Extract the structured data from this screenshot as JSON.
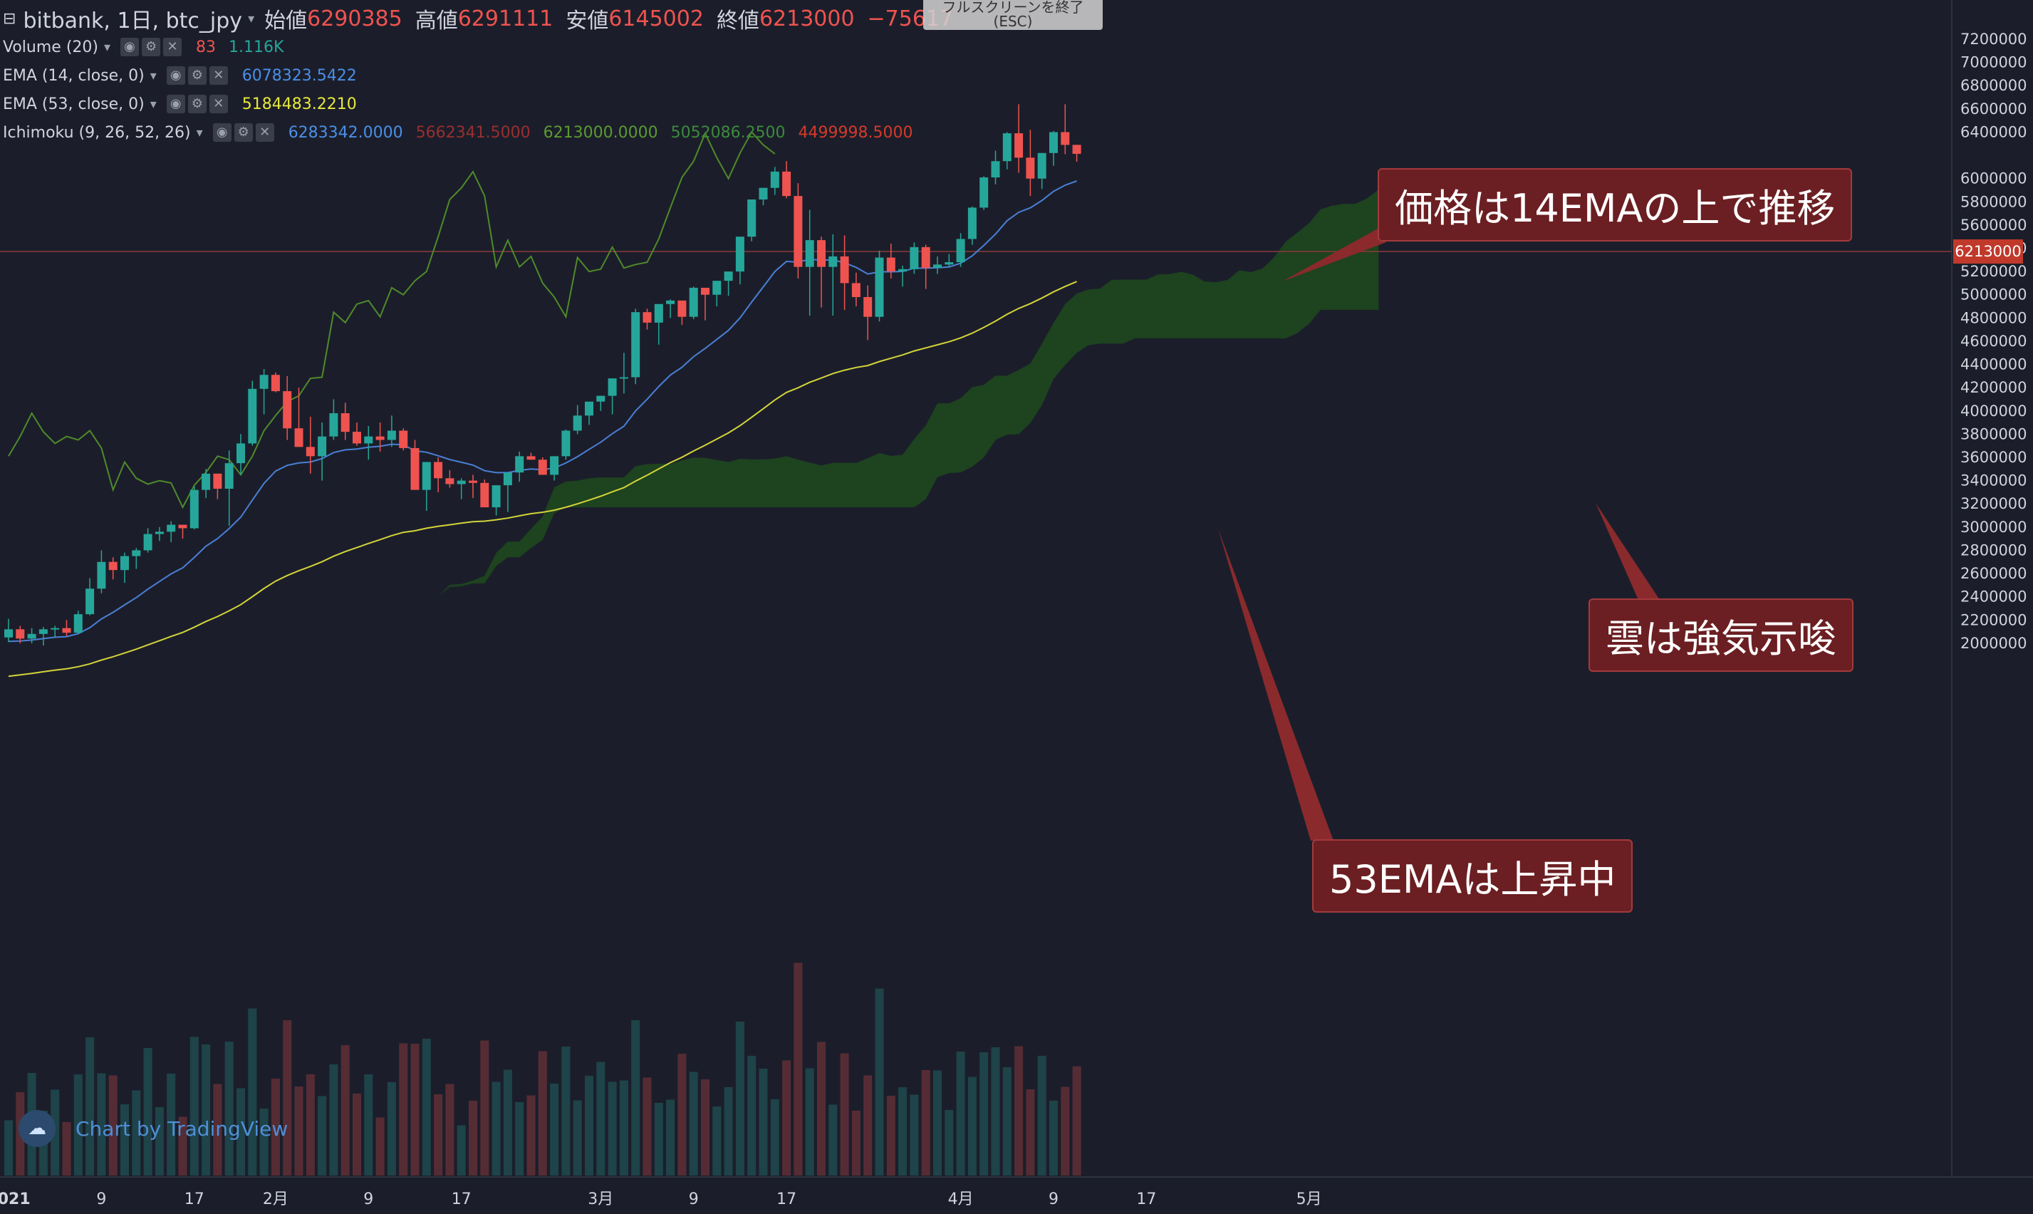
{
  "header": {
    "symbol": "bitbank, 1日, btc_jpy",
    "open_label": "始値",
    "open": "6290385",
    "high_label": "高値",
    "high": "6291111",
    "low_label": "安値",
    "low": "6145002",
    "close_label": "終値",
    "close": "6213000",
    "change": "−75617",
    "fullscreen_hint": "フルスクリーンを終了 (ESC)"
  },
  "indicators": {
    "volume": {
      "label": "Volume (20)",
      "v1": "83",
      "v2": "1.116K"
    },
    "ema14": {
      "label": "EMA (14, close, 0)",
      "value": "6078323.5422"
    },
    "ema53": {
      "label": "EMA (53, close, 0)",
      "value": "5184483.2210"
    },
    "ichimoku": {
      "label": "Ichimoku (9, 26, 52, 26)",
      "v1": "6283342.0000",
      "v2": "5662341.5000",
      "v3": "6213000.0000",
      "v4": "5052086.2500",
      "v5": "4499998.5000"
    }
  },
  "price_axis": {
    "ticks": [
      "7200000",
      "7000000",
      "6800000",
      "6600000",
      "6400000",
      "6213000",
      "6000000",
      "5800000",
      "5600000",
      "5400000",
      "5200000",
      "5000000",
      "4800000",
      "4600000",
      "4400000",
      "4200000",
      "4000000",
      "3800000",
      "3600000",
      "3400000",
      "3200000",
      "3000000",
      "2800000",
      "2600000",
      "2400000",
      "2200000",
      "2000000"
    ],
    "last_price": "6213000"
  },
  "time_axis": {
    "labels": [
      {
        "text": "2021",
        "bar": 0,
        "bold": true
      },
      {
        "text": "9",
        "bar": 8
      },
      {
        "text": "17",
        "bar": 16
      },
      {
        "text": "2月",
        "bar": 23
      },
      {
        "text": "9",
        "bar": 31
      },
      {
        "text": "17",
        "bar": 39
      },
      {
        "text": "3月",
        "bar": 51
      },
      {
        "text": "9",
        "bar": 59
      },
      {
        "text": "17",
        "bar": 67
      },
      {
        "text": "4月",
        "bar": 82
      },
      {
        "text": "9",
        "bar": 90
      },
      {
        "text": "17",
        "bar": 98
      },
      {
        "text": "5月",
        "bar": 112
      }
    ]
  },
  "annotations": {
    "note1": "価格は14EMAの上で推移",
    "note2": "雲は強気示唆",
    "note3": "53EMAは上昇中"
  },
  "branding": {
    "text": "Chart by TradingView"
  },
  "colors": {
    "bg": "#1b1e2a",
    "up": "#26a69a",
    "down": "#ef5350",
    "ema14": "#4a7fd6",
    "ema53": "#d4d43a",
    "lagging": "#4f8a2a",
    "cloud": "#1f4a1d",
    "note_bg": "#6b1f22"
  },
  "chart_data": {
    "type": "candlestick",
    "title": "bitbank, 1日, btc_jpy",
    "ylim": [
      2000000,
      7200000
    ],
    "candles_ohlc": [
      [
        2050000,
        2210000,
        2010000,
        2120000
      ],
      [
        2120000,
        2150000,
        2000000,
        2040000
      ],
      [
        2040000,
        2130000,
        2000000,
        2080000
      ],
      [
        2080000,
        2140000,
        1980000,
        2120000
      ],
      [
        2120000,
        2150000,
        2050000,
        2130000
      ],
      [
        2130000,
        2200000,
        2060000,
        2090000
      ],
      [
        2090000,
        2280000,
        2080000,
        2250000
      ],
      [
        2250000,
        2560000,
        2240000,
        2470000
      ],
      [
        2470000,
        2800000,
        2430000,
        2700000
      ],
      [
        2700000,
        2740000,
        2550000,
        2630000
      ],
      [
        2630000,
        2780000,
        2520000,
        2750000
      ],
      [
        2750000,
        2820000,
        2640000,
        2800000
      ],
      [
        2800000,
        2990000,
        2780000,
        2940000
      ],
      [
        2940000,
        3000000,
        2880000,
        2960000
      ],
      [
        2960000,
        3050000,
        2870000,
        3020000
      ],
      [
        3020000,
        3020000,
        2900000,
        2990000
      ],
      [
        2990000,
        3350000,
        2980000,
        3320000
      ],
      [
        3320000,
        3500000,
        3250000,
        3460000
      ],
      [
        3460000,
        3410000,
        3240000,
        3330000
      ],
      [
        3330000,
        3660000,
        3010000,
        3550000
      ],
      [
        3550000,
        3800000,
        3450000,
        3720000
      ],
      [
        3720000,
        4260000,
        3700000,
        4190000
      ],
      [
        4190000,
        4360000,
        3970000,
        4310000
      ],
      [
        4310000,
        4330000,
        4160000,
        4170000
      ],
      [
        4170000,
        4300000,
        3750000,
        3850000
      ],
      [
        3850000,
        4200000,
        3700000,
        3690000
      ],
      [
        3690000,
        3950000,
        3460000,
        3610000
      ],
      [
        3610000,
        3900000,
        3400000,
        3780000
      ],
      [
        3780000,
        4100000,
        3750000,
        3980000
      ],
      [
        3980000,
        4070000,
        3750000,
        3820000
      ],
      [
        3820000,
        3900000,
        3700000,
        3720000
      ],
      [
        3720000,
        3870000,
        3580000,
        3780000
      ],
      [
        3780000,
        3900000,
        3650000,
        3750000
      ],
      [
        3750000,
        3960000,
        3690000,
        3830000
      ],
      [
        3830000,
        3850000,
        3660000,
        3680000
      ],
      [
        3680000,
        3750000,
        3330000,
        3320000
      ],
      [
        3320000,
        3490000,
        3140000,
        3560000
      ],
      [
        3560000,
        3600000,
        3300000,
        3420000
      ],
      [
        3420000,
        3490000,
        3340000,
        3370000
      ],
      [
        3370000,
        3420000,
        3240000,
        3400000
      ],
      [
        3400000,
        3450000,
        3250000,
        3380000
      ],
      [
        3380000,
        3410000,
        3270000,
        3170000
      ],
      [
        3170000,
        3320000,
        3100000,
        3360000
      ],
      [
        3360000,
        3460000,
        3130000,
        3470000
      ],
      [
        3470000,
        3650000,
        3390000,
        3610000
      ],
      [
        3610000,
        3640000,
        3580000,
        3580000
      ],
      [
        3580000,
        3600000,
        3450000,
        3450000
      ],
      [
        3450000,
        3590000,
        3400000,
        3610000
      ],
      [
        3610000,
        3840000,
        3580000,
        3830000
      ],
      [
        3830000,
        4050000,
        3800000,
        3960000
      ],
      [
        3960000,
        4040000,
        3880000,
        4080000
      ],
      [
        4080000,
        4130000,
        4000000,
        4130000
      ],
      [
        4130000,
        4270000,
        3970000,
        4280000
      ],
      [
        4280000,
        4500000,
        4150000,
        4290000
      ],
      [
        4290000,
        4880000,
        4230000,
        4850000
      ],
      [
        4850000,
        4880000,
        4700000,
        4760000
      ],
      [
        4760000,
        4790000,
        4570000,
        4920000
      ],
      [
        4920000,
        4960000,
        4800000,
        4950000
      ],
      [
        4950000,
        4920000,
        4740000,
        4810000
      ],
      [
        4810000,
        5070000,
        4790000,
        5060000
      ],
      [
        5060000,
        5050000,
        4780000,
        5000000
      ],
      [
        5000000,
        5080000,
        4900000,
        5120000
      ],
      [
        5120000,
        5150000,
        4990000,
        5200000
      ],
      [
        5200000,
        5320000,
        5090000,
        5500000
      ],
      [
        5500000,
        5680000,
        5460000,
        5820000
      ],
      [
        5820000,
        5920000,
        5770000,
        5920000
      ],
      [
        5920000,
        6100000,
        5860000,
        6060000
      ],
      [
        6060000,
        6150000,
        5830000,
        5850000
      ],
      [
        5850000,
        5960000,
        5140000,
        5240000
      ],
      [
        5240000,
        5730000,
        4820000,
        5470000
      ],
      [
        5470000,
        5500000,
        4890000,
        5240000
      ],
      [
        5240000,
        5520000,
        4820000,
        5330000
      ],
      [
        5330000,
        5510000,
        4870000,
        5100000
      ],
      [
        5100000,
        5190000,
        4900000,
        4980000
      ],
      [
        4980000,
        5080000,
        4610000,
        4810000
      ],
      [
        4810000,
        5380000,
        4770000,
        5320000
      ],
      [
        5320000,
        5440000,
        5140000,
        5200000
      ],
      [
        5200000,
        5250000,
        5070000,
        5220000
      ],
      [
        5220000,
        5450000,
        5180000,
        5410000
      ],
      [
        5410000,
        5430000,
        5050000,
        5230000
      ],
      [
        5230000,
        5330000,
        5180000,
        5260000
      ],
      [
        5260000,
        5350000,
        5240000,
        5280000
      ],
      [
        5280000,
        5530000,
        5240000,
        5480000
      ],
      [
        5480000,
        5760000,
        5430000,
        5750000
      ],
      [
        5750000,
        6020000,
        5730000,
        6010000
      ],
      [
        6010000,
        6240000,
        5950000,
        6150000
      ],
      [
        6150000,
        6400000,
        6080000,
        6390000
      ],
      [
        6390000,
        6640000,
        6050000,
        6180000
      ],
      [
        6180000,
        6420000,
        5850000,
        6000000
      ],
      [
        6000000,
        6220000,
        5910000,
        6220000
      ],
      [
        6220000,
        6410000,
        6110000,
        6400000
      ],
      [
        6400000,
        6640000,
        6210000,
        6290000
      ],
      [
        6290000,
        6291111,
        6145002,
        6213000
      ]
    ]
  }
}
